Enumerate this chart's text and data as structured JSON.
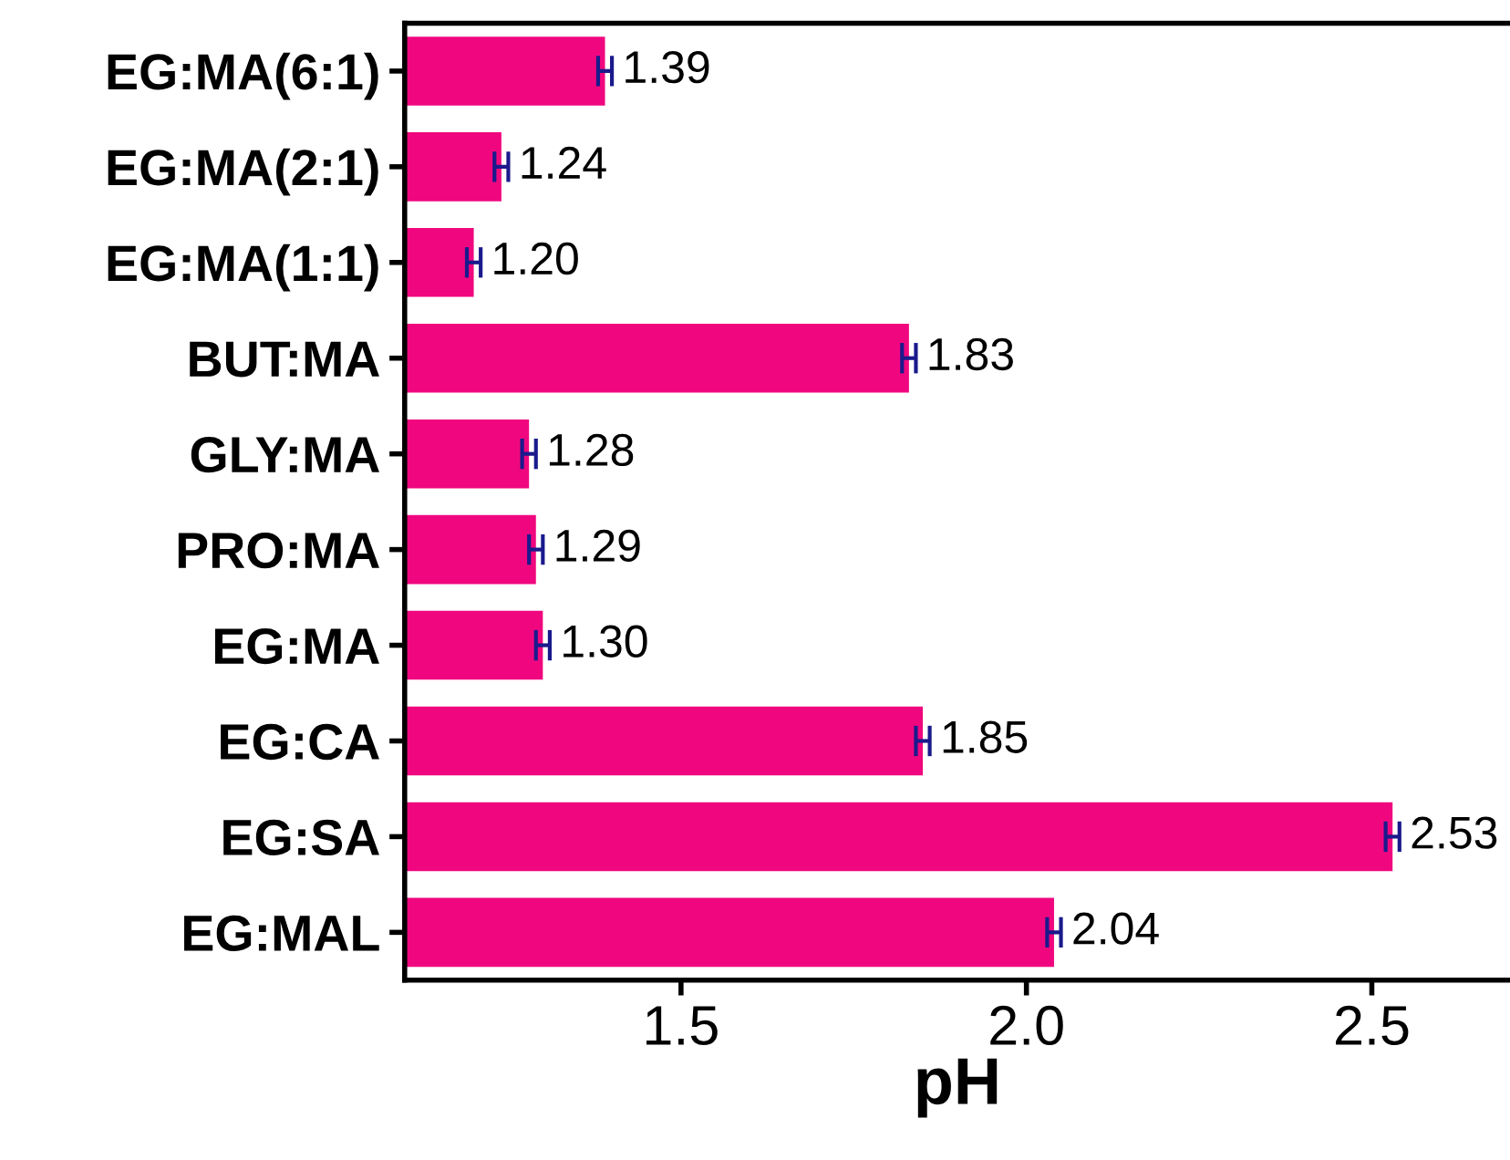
{
  "chart_data": {
    "type": "bar",
    "orientation": "horizontal",
    "xlabel": "pH",
    "categories": [
      "EG:MA(6:1)",
      "EG:MA(2:1)",
      "EG:MA(1:1)",
      "BUT:MA",
      "GLY:MA",
      "PRO:MA",
      "EG:MA",
      "EG:CA",
      "EG:SA",
      "EG:MAL"
    ],
    "values": [
      1.39,
      1.24,
      1.2,
      1.83,
      1.28,
      1.29,
      1.3,
      1.85,
      2.53,
      2.04
    ],
    "errors": [
      0.01,
      0.01,
      0.01,
      0.01,
      0.01,
      0.01,
      0.01,
      0.01,
      0.01,
      0.01
    ],
    "value_labels": [
      "1.39",
      "1.24",
      "1.20",
      "1.83",
      "1.28",
      "1.29",
      "1.30",
      "1.85",
      "2.53",
      "2.04"
    ],
    "color": "#f0077f",
    "xlim": [
      1.1,
      2.7
    ],
    "xticks": [
      1.5,
      {
        "value": 2.0,
        "label": "2.0"
      },
      2.5
    ],
    "grid": false,
    "legend": false
  }
}
